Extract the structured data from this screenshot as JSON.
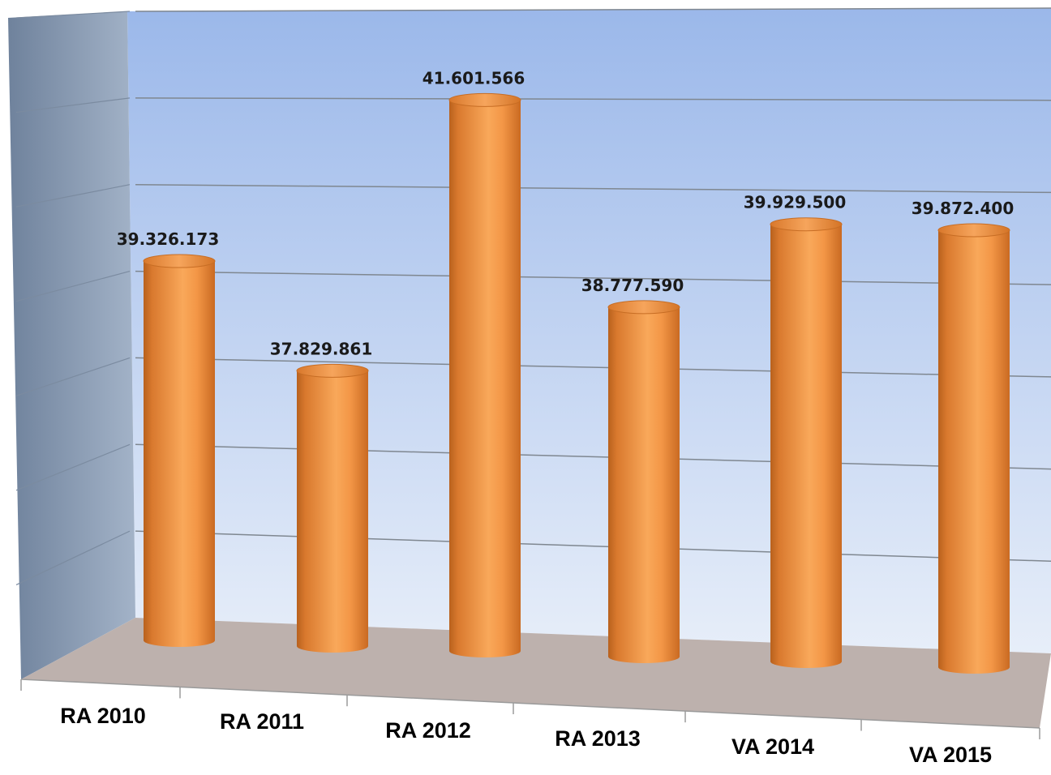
{
  "chart_data": {
    "type": "bar",
    "style": "3d-cylinder",
    "categories": [
      "RA 2010",
      "RA 2011",
      "RA 2012",
      "RA 2013",
      "VA 2014",
      "VA 2015"
    ],
    "values": [
      39326173,
      37829861,
      41601566,
      38777590,
      39929500,
      39872400
    ],
    "value_labels": [
      "39.326.173",
      "37.829.861",
      "41.601.566",
      "38.777.590",
      "39.929.500",
      "39.872.400"
    ],
    "title": "",
    "xlabel": "",
    "ylabel": "",
    "ylim": [
      34000000,
      42400000
    ],
    "y_ticks_labeled": false,
    "grid": true,
    "legend": "none",
    "colors": {
      "bar": "#f0913f",
      "bar_highlight": "#f9b56e",
      "bar_shadow": "#b8611d",
      "back_wall_top": "#9bb8ea",
      "back_wall_bottom": "#e7eef9",
      "side_wall": "#8a9db8",
      "floor": "#bdb1ad",
      "gridline": "#7f8790"
    }
  }
}
